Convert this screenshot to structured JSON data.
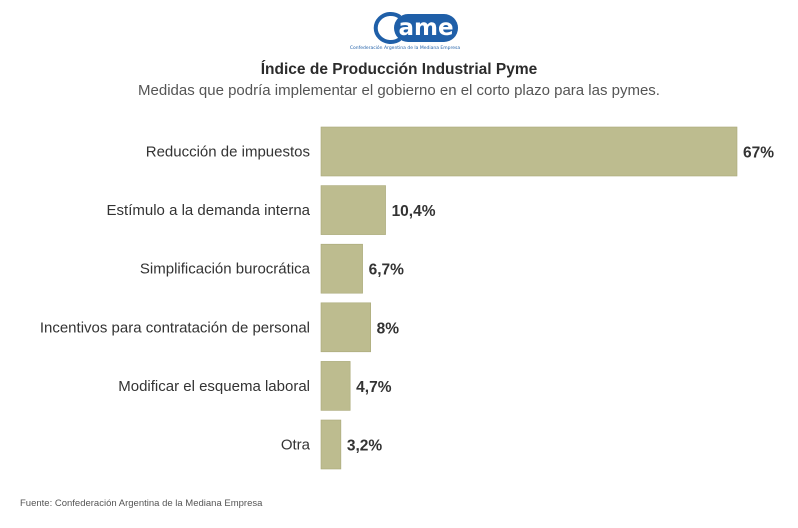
{
  "logo": {
    "text": "ame",
    "tagline": "Confederación Argentina de la Mediana Empresa"
  },
  "colors": {
    "bar": "#bdbc8f",
    "bar_stroke": "#a9a878",
    "label": "#333333",
    "value": "#333333",
    "brand": "#1f5fa8"
  },
  "chart_data": {
    "type": "bar",
    "orientation": "horizontal",
    "title": "Índice de Producción Industrial Pyme",
    "subtitle": "Medidas que podría implementar el gobierno en el corto plazo para las pymes.",
    "categories": [
      "Reducción de impuestos",
      "Estímulo a la demanda interna",
      "Simplificación burocrática",
      "Incentivos para contratación de personal",
      "Modificar el esquema laboral",
      "Otra"
    ],
    "values": [
      67,
      10.4,
      6.7,
      8,
      4.7,
      3.2
    ],
    "value_labels": [
      "67%",
      "10,4%",
      "6,7%",
      "8%",
      "4,7%",
      "3,2%"
    ],
    "xlim": [
      0,
      67
    ],
    "grid": false,
    "legend": "none",
    "source": "Fuente: Confederación Argentina de la Mediana Empresa"
  }
}
